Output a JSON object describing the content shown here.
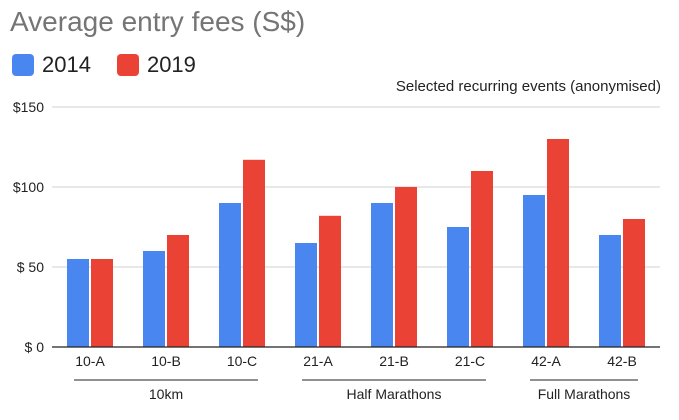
{
  "chart_data": {
    "type": "bar",
    "title": "Average entry fees (S$)",
    "subtitle": "Selected recurring events (anonymised)",
    "categories": [
      "10-A",
      "10-B",
      "10-C",
      "21-A",
      "21-B",
      "21-C",
      "42-A",
      "42-B"
    ],
    "groups": [
      {
        "label": "10km",
        "categories": [
          "10-A",
          "10-B",
          "10-C"
        ]
      },
      {
        "label": "Half Marathons",
        "categories": [
          "21-A",
          "21-B",
          "21-C"
        ]
      },
      {
        "label": "Full Marathons",
        "categories": [
          "42-A",
          "42-B"
        ]
      }
    ],
    "series": [
      {
        "name": "2014",
        "color": "#4a86f0",
        "values": [
          55,
          60,
          90,
          65,
          90,
          75,
          95,
          70
        ]
      },
      {
        "name": "2019",
        "color": "#ea4335",
        "values": [
          55,
          70,
          117,
          82,
          100,
          110,
          130,
          80
        ]
      }
    ],
    "ylim": [
      0,
      150
    ],
    "yticks": [
      0,
      50,
      100,
      150
    ],
    "ytick_labels": [
      "$ 0",
      "$ 50",
      "$100",
      "$150"
    ],
    "grid": true,
    "legend_position": "top-left"
  }
}
